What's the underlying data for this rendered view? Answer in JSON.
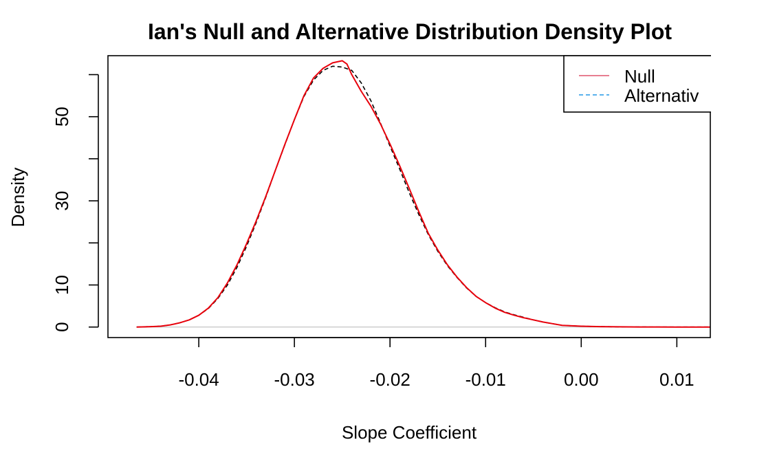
{
  "chart_data": {
    "type": "line",
    "title": "Ian's Null and Alternative Distribution Density Plot",
    "xlabel": "Slope Coefficient",
    "ylabel": "Density",
    "xlim": [
      -0.0495,
      0.0135
    ],
    "ylim": [
      -2.5,
      64.5
    ],
    "x_ticks": [
      -0.04,
      -0.03,
      -0.02,
      -0.01,
      0.0,
      0.01
    ],
    "x_tick_labels": [
      "-0.04",
      "-0.03",
      "-0.02",
      "-0.01",
      "0.00",
      "0.01"
    ],
    "y_ticks": [
      0,
      10,
      20,
      30,
      40,
      50,
      60
    ],
    "y_tick_labels": [
      "0",
      "10",
      "",
      "30",
      "",
      "50",
      ""
    ],
    "grid": false,
    "baseline_y": 0,
    "legend": {
      "position": "top-right",
      "entries": [
        {
          "label": "Null",
          "color": "#DF536B",
          "dash": "solid"
        },
        {
          "label": "Alternativ",
          "color": "#2297E6",
          "dash": "dashed"
        }
      ]
    },
    "series": [
      {
        "color": "#E8000B",
        "dash": "solid",
        "x": [
          -0.0465,
          -0.045,
          -0.044,
          -0.043,
          -0.042,
          -0.041,
          -0.04,
          -0.039,
          -0.038,
          -0.037,
          -0.036,
          -0.035,
          -0.034,
          -0.033,
          -0.032,
          -0.031,
          -0.03,
          -0.029,
          -0.028,
          -0.027,
          -0.026,
          -0.025,
          -0.0245,
          -0.024,
          -0.023,
          -0.022,
          -0.021,
          -0.02,
          -0.019,
          -0.018,
          -0.017,
          -0.016,
          -0.015,
          -0.014,
          -0.013,
          -0.012,
          -0.011,
          -0.01,
          -0.009,
          -0.008,
          -0.007,
          -0.006,
          -0.005,
          -0.004,
          -0.003,
          -0.002,
          -0.001,
          0.0,
          0.002,
          0.004,
          0.006,
          0.008,
          0.01,
          0.012,
          0.0135
        ],
        "y": [
          0.0,
          0.1,
          0.2,
          0.5,
          1.0,
          1.7,
          2.8,
          4.5,
          7.0,
          10.5,
          14.8,
          19.8,
          25.2,
          31.0,
          37.2,
          43.4,
          49.3,
          55.0,
          59.2,
          61.5,
          62.8,
          63.3,
          62.5,
          60.0,
          56.0,
          52.5,
          48.3,
          43.5,
          38.4,
          33.0,
          27.5,
          22.3,
          18.3,
          14.8,
          11.9,
          9.4,
          7.3,
          5.8,
          4.5,
          3.5,
          2.8,
          2.2,
          1.7,
          1.2,
          0.8,
          0.4,
          0.3,
          0.2,
          0.1,
          0.05,
          0.02,
          0.01,
          0.0,
          0.0,
          0.0
        ]
      },
      {
        "color": "#000000",
        "dash": "dashed",
        "x": [
          -0.0465,
          -0.045,
          -0.044,
          -0.043,
          -0.042,
          -0.041,
          -0.04,
          -0.039,
          -0.038,
          -0.037,
          -0.036,
          -0.035,
          -0.034,
          -0.033,
          -0.032,
          -0.031,
          -0.03,
          -0.029,
          -0.028,
          -0.027,
          -0.026,
          -0.025,
          -0.024,
          -0.023,
          -0.022,
          -0.021,
          -0.02,
          -0.019,
          -0.018,
          -0.017,
          -0.016,
          -0.015,
          -0.014,
          -0.013,
          -0.012,
          -0.011,
          -0.01,
          -0.009,
          -0.008,
          -0.007,
          -0.006,
          -0.005,
          -0.004,
          -0.003,
          -0.002,
          -0.001,
          0.0,
          0.002,
          0.004,
          0.006,
          0.008,
          0.01,
          0.012,
          0.0135
        ],
        "y": [
          0.0,
          0.1,
          0.2,
          0.5,
          1.0,
          1.7,
          2.8,
          4.4,
          6.8,
          10.0,
          14.2,
          19.2,
          24.8,
          30.8,
          37.2,
          43.3,
          49.3,
          54.8,
          58.7,
          61.0,
          62.0,
          61.8,
          61.0,
          58.0,
          53.8,
          48.5,
          43.0,
          37.6,
          32.0,
          26.8,
          22.0,
          18.0,
          14.6,
          11.8,
          9.3,
          7.3,
          5.8,
          4.6,
          3.6,
          2.9,
          2.3,
          1.7,
          1.2,
          0.8,
          0.4,
          0.3,
          0.2,
          0.1,
          0.05,
          0.02,
          0.01,
          0.0,
          0.0,
          0.0
        ]
      }
    ]
  }
}
